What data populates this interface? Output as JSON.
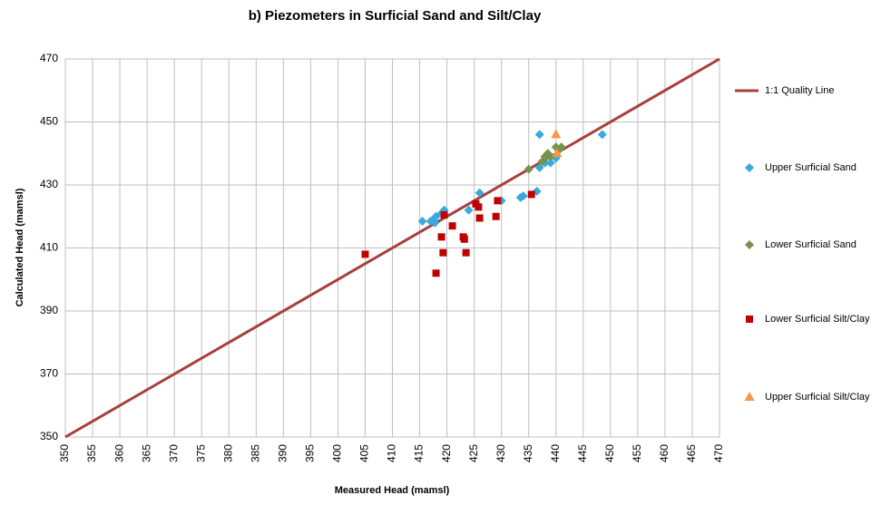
{
  "chart_data": {
    "type": "scatter",
    "title": "b) Piezometers in Surficial Sand and Silt/Clay",
    "x_label": "Measured Head (mamsl)",
    "y_label": "Calculated Head (mamsl)",
    "xlim": [
      350,
      470
    ],
    "ylim": [
      350,
      470
    ],
    "xticks": [
      350,
      355,
      360,
      365,
      370,
      375,
      380,
      385,
      390,
      395,
      400,
      405,
      410,
      415,
      420,
      425,
      430,
      435,
      440,
      445,
      450,
      455,
      460,
      465,
      470
    ],
    "yticks": [
      350,
      370,
      390,
      410,
      430,
      450,
      470
    ],
    "grid": true,
    "legend": "right",
    "series": [
      {
        "name": "1:1 Quality Line",
        "color": "#a6403b",
        "marker": "line",
        "x": [
          350,
          470
        ],
        "values": [
          350,
          470
        ]
      },
      {
        "name": "Upper Surficial Sand",
        "color": "#3aa9dc",
        "marker": "diamond",
        "x": [
          415.5,
          417,
          417.5,
          418,
          419,
          419.5,
          417.8,
          424,
          426,
          430,
          433.5,
          434,
          436.5,
          437,
          437,
          438,
          439,
          440,
          441,
          448.5
        ],
        "values": [
          418.5,
          418.5,
          419,
          420,
          421,
          422,
          418,
          422,
          427.5,
          425,
          426,
          426.5,
          428,
          435.5,
          446,
          437,
          437,
          438.5,
          442,
          446
        ]
      },
      {
        "name": "Lower Surficial Sand",
        "color": "#77934a",
        "marker": "diamond",
        "x": [
          435,
          437.5,
          438,
          438.5,
          439,
          440,
          440.5,
          441
        ],
        "values": [
          435,
          437.5,
          439,
          440,
          439,
          442,
          441,
          442
        ]
      },
      {
        "name": "Lower Surficial Silt/Clay",
        "color": "#c00000",
        "marker": "square",
        "x": [
          405,
          418,
          419,
          419.3,
          419.5,
          421,
          423,
          423.2,
          423.5,
          425.3,
          425.8,
          426,
          429,
          429.3,
          435.5
        ],
        "values": [
          408,
          402,
          413.5,
          408.5,
          420.5,
          417,
          413.5,
          412.8,
          408.5,
          424,
          423,
          419.5,
          420,
          425,
          427
        ]
      },
      {
        "name": "Upper Surficial Silt/Clay",
        "color": "#f79646",
        "marker": "triangle",
        "x": [
          440,
          440.2
        ],
        "values": [
          446,
          440
        ]
      }
    ]
  }
}
